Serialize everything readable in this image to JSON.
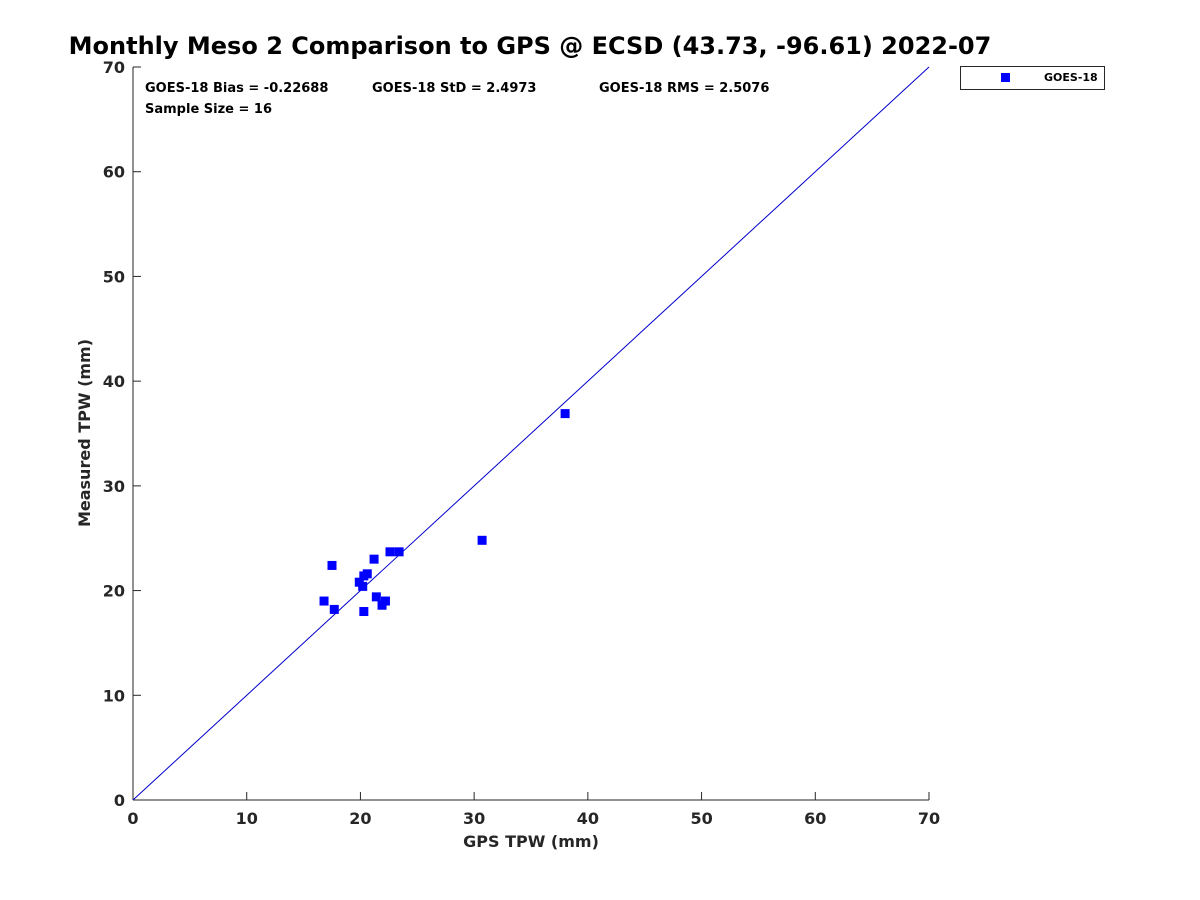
{
  "chart_data": {
    "type": "scatter",
    "title": "Monthly Meso 2 Comparison to GPS @ ECSD (43.73, -96.61) 2022-07",
    "xlabel": "GPS TPW (mm)",
    "ylabel": "Measured TPW (mm)",
    "xlim": [
      0,
      70
    ],
    "ylim": [
      0,
      70
    ],
    "xticks": [
      0,
      10,
      20,
      30,
      40,
      50,
      60,
      70
    ],
    "yticks": [
      0,
      10,
      20,
      30,
      40,
      50,
      60,
      70
    ],
    "grid": false,
    "legend_position": "outside-top-right",
    "reference_line": {
      "from": [
        0,
        0
      ],
      "to": [
        70,
        70
      ],
      "color": "#0000cc"
    },
    "annotations": {
      "bias": "GOES-18 Bias = -0.22688",
      "std": "GOES-18 StD = 2.4973",
      "rms": "GOES-18 RMS = 2.5076",
      "sample": "Sample Size = 16"
    },
    "series": [
      {
        "name": "GOES-18",
        "color": "#0000ff",
        "marker": "square",
        "points": [
          {
            "x": 16.8,
            "y": 19.0
          },
          {
            "x": 17.5,
            "y": 22.4
          },
          {
            "x": 17.7,
            "y": 18.2
          },
          {
            "x": 19.9,
            "y": 20.8
          },
          {
            "x": 20.2,
            "y": 20.4
          },
          {
            "x": 20.3,
            "y": 21.4
          },
          {
            "x": 20.3,
            "y": 18.0
          },
          {
            "x": 20.6,
            "y": 21.6
          },
          {
            "x": 21.2,
            "y": 23.0
          },
          {
            "x": 21.4,
            "y": 19.4
          },
          {
            "x": 21.9,
            "y": 18.6
          },
          {
            "x": 22.2,
            "y": 19.0
          },
          {
            "x": 22.6,
            "y": 23.7
          },
          {
            "x": 23.4,
            "y": 23.7
          },
          {
            "x": 30.7,
            "y": 24.8
          },
          {
            "x": 38.0,
            "y": 36.9
          }
        ]
      }
    ]
  }
}
